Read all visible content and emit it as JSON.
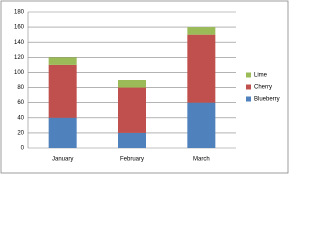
{
  "chart_data": {
    "type": "stacked_bar",
    "categories": [
      "January",
      "February",
      "March"
    ],
    "series": [
      {
        "name": "Blueberry",
        "color": "#4f81bd",
        "values": [
          40,
          20,
          60
        ]
      },
      {
        "name": "Cherry",
        "color": "#c0504d",
        "values": [
          70,
          60,
          90
        ]
      },
      {
        "name": "Lime",
        "color": "#9bbb59",
        "values": [
          10,
          10,
          10
        ]
      }
    ],
    "ylim": [
      0,
      180
    ],
    "yticks": [
      0,
      20,
      40,
      60,
      80,
      100,
      120,
      140,
      160,
      180
    ],
    "grid": true,
    "legend": "right"
  }
}
